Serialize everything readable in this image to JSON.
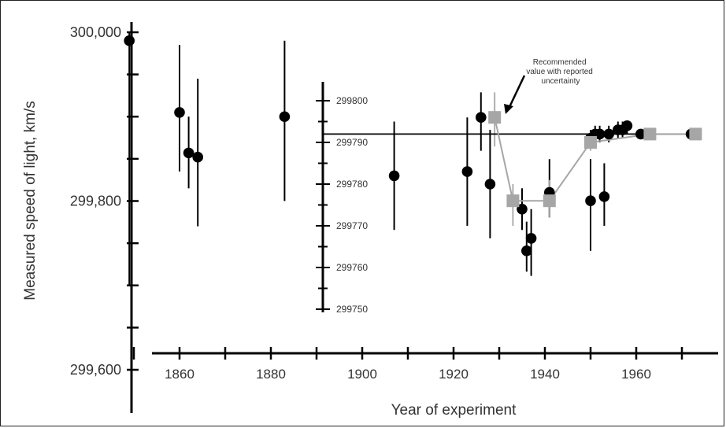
{
  "chart_data": {
    "type": "scatter",
    "ylabel": "Measured speed of light, km/s",
    "xlabel": "Year of experiment",
    "annotation": "Recommended value with reported uncertainty",
    "annotation_lines": [
      "Recommended",
      "value with reported",
      "uncertainty"
    ],
    "colors": {
      "measurement": "#000000",
      "recommended": "#a6a6a6"
    },
    "main_axis": {
      "xlim": [
        1840,
        1980
      ],
      "x_ticks": [
        1860,
        1880,
        1900,
        1920,
        1940,
        1960
      ],
      "ylim": [
        299590,
        300010
      ],
      "y_ticks": [
        {
          "value": 300000,
          "label": "300,000"
        },
        {
          "value": 299800,
          "label": "299,800"
        },
        {
          "value": 299600,
          "label": "299,600"
        }
      ],
      "y_minor_ticks": [
        299950,
        299900,
        299850,
        299750,
        299700,
        299650
      ]
    },
    "inset_axis": {
      "ylim": [
        299750,
        299800
      ],
      "y_ticks": [
        299800,
        299790,
        299780,
        299770,
        299760,
        299750
      ],
      "reference_value": 299792
    },
    "series": [
      {
        "scale": "main",
        "points": [
          {
            "x": 1849,
            "y": 299990,
            "lo": 299700,
            "hi": 300000
          },
          {
            "x": 1860,
            "y": 299905,
            "lo": 299835,
            "hi": 299985
          },
          {
            "x": 1862,
            "y": 299857,
            "lo": 299815,
            "hi": 299900
          },
          {
            "x": 1864,
            "y": 299852,
            "lo": 299770,
            "hi": 299945
          },
          {
            "x": 1883,
            "y": 299900,
            "lo": 299800,
            "hi": 299990
          }
        ]
      },
      {
        "scale": "inset",
        "points": [
          {
            "x": 1907,
            "y": 299782,
            "lo": 299769,
            "hi": 299795
          },
          {
            "x": 1923,
            "y": 299783,
            "lo": 299770,
            "hi": 299796
          },
          {
            "x": 1926,
            "y": 299796,
            "lo": 299788,
            "hi": 299802
          },
          {
            "x": 1928,
            "y": 299780,
            "lo": 299767,
            "hi": 299793
          },
          {
            "x": 1935,
            "y": 299774,
            "lo": 299769,
            "hi": 299779
          },
          {
            "x": 1936,
            "y": 299764,
            "lo": 299759,
            "hi": 299771
          },
          {
            "x": 1937,
            "y": 299767,
            "lo": 299758,
            "hi": 299774
          },
          {
            "x": 1941,
            "y": 299778,
            "lo": 299772,
            "hi": 299786
          },
          {
            "x": 1950,
            "y": 299776,
            "lo": 299764,
            "hi": 299786
          },
          {
            "x": 1950,
            "y": 299791,
            "lo": 299789,
            "hi": 299793
          },
          {
            "x": 1951,
            "y": 299792,
            "lo": 299790,
            "hi": 299794
          },
          {
            "x": 1952,
            "y": 299792,
            "lo": 299790,
            "hi": 299794
          },
          {
            "x": 1953,
            "y": 299777,
            "lo": 299770,
            "hi": 299785
          },
          {
            "x": 1954,
            "y": 299792,
            "lo": 299790,
            "hi": 299794
          },
          {
            "x": 1956,
            "y": 299793,
            "lo": 299791,
            "hi": 299795
          },
          {
            "x": 1957,
            "y": 299793,
            "lo": 299791,
            "hi": 299795
          },
          {
            "x": 1958,
            "y": 299794,
            "lo": 299792,
            "hi": 299795
          },
          {
            "x": 1961,
            "y": 299792,
            "lo": 299791,
            "hi": 299793
          },
          {
            "x": 1972,
            "y": 299792,
            "lo": 299791,
            "hi": 299793
          }
        ]
      },
      {
        "scale": "inset",
        "points": [
          {
            "x": 1929,
            "y": 299796,
            "lo": 299789,
            "hi": 299802
          },
          {
            "x": 1933,
            "y": 299776,
            "lo": 299770,
            "hi": 299780
          },
          {
            "x": 1941,
            "y": 299776,
            "lo": 299772,
            "hi": 299781
          },
          {
            "x": 1950,
            "y": 299790,
            "lo": 299788,
            "hi": 299792
          },
          {
            "x": 1963,
            "y": 299792,
            "lo": 299791,
            "hi": 299793
          },
          {
            "x": 1973,
            "y": 299792,
            "lo": 299792,
            "hi": 299792
          }
        ]
      }
    ]
  }
}
